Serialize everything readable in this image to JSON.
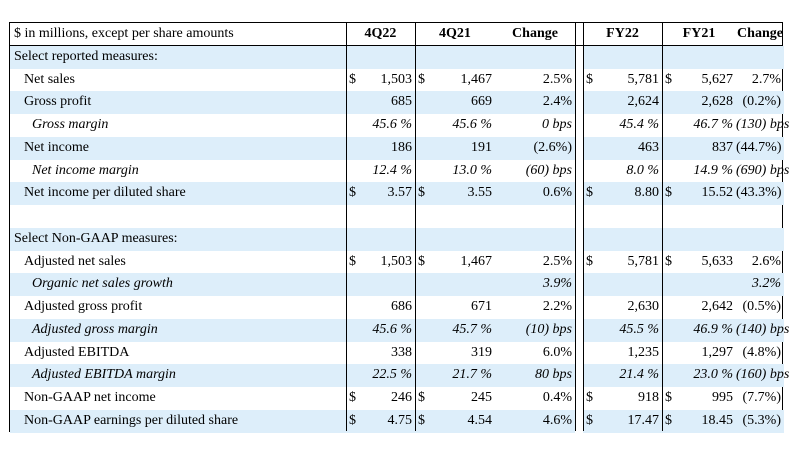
{
  "header": {
    "label": "$ in millions, except per share amounts",
    "columns": [
      "4Q22",
      "4Q21",
      "Change",
      "FY22",
      "FY21",
      "Change"
    ]
  },
  "rows": [
    {
      "label": "Select reported measures:",
      "indent": 0,
      "style": "section",
      "values": [
        "",
        "",
        "",
        "",
        "",
        ""
      ],
      "cur": [
        false,
        false,
        false,
        false
      ]
    },
    {
      "label": "Net sales",
      "indent": 1,
      "style": "normal",
      "values": [
        "1,503",
        "1,467",
        "2.5%",
        "5,781",
        "5,627",
        "2.7%"
      ],
      "cur": [
        true,
        true,
        true,
        true
      ]
    },
    {
      "label": "Gross profit",
      "indent": 1,
      "style": "normal",
      "values": [
        "685",
        "669",
        "2.4%",
        "2,624",
        "2,628",
        "(0.2%)"
      ],
      "cur": [
        false,
        false,
        false,
        false
      ]
    },
    {
      "label": "Gross margin",
      "indent": 2,
      "style": "italic",
      "values": [
        "45.6 %",
        "45.6 %",
        "0 bps",
        "45.4 %",
        "46.7 %",
        "(130) bps"
      ],
      "cur": [
        false,
        false,
        false,
        false
      ]
    },
    {
      "label": "Net income",
      "indent": 1,
      "style": "normal",
      "values": [
        "186",
        "191",
        "(2.6%)",
        "463",
        "837",
        "(44.7%)"
      ],
      "cur": [
        false,
        false,
        false,
        false
      ]
    },
    {
      "label": "Net income margin",
      "indent": 2,
      "style": "italic",
      "values": [
        "12.4 %",
        "13.0 %",
        "(60) bps",
        "8.0 %",
        "14.9 %",
        "(690) bps"
      ],
      "cur": [
        false,
        false,
        false,
        false
      ]
    },
    {
      "label": "Net income per diluted share",
      "indent": 1,
      "style": "normal",
      "values": [
        "3.57",
        "3.55",
        "0.6%",
        "8.80",
        "15.52",
        "(43.3%)"
      ],
      "cur": [
        true,
        true,
        true,
        true
      ]
    },
    {
      "label": "",
      "indent": 0,
      "style": "blank",
      "values": [
        "",
        "",
        "",
        "",
        "",
        ""
      ],
      "cur": [
        false,
        false,
        false,
        false
      ]
    },
    {
      "label": "Select Non-GAAP measures:",
      "indent": 0,
      "style": "section",
      "values": [
        "",
        "",
        "",
        "",
        "",
        ""
      ],
      "cur": [
        false,
        false,
        false,
        false
      ]
    },
    {
      "label": "Adjusted net sales",
      "indent": 1,
      "style": "normal",
      "values": [
        "1,503",
        "1,467",
        "2.5%",
        "5,781",
        "5,633",
        "2.6%"
      ],
      "cur": [
        true,
        true,
        true,
        true
      ]
    },
    {
      "label": "Organic net sales growth",
      "indent": 2,
      "style": "italic",
      "values": [
        "",
        "",
        "3.9%",
        "",
        "",
        "3.2%"
      ],
      "cur": [
        false,
        false,
        false,
        false
      ]
    },
    {
      "label": "Adjusted gross profit",
      "indent": 1,
      "style": "normal",
      "values": [
        "686",
        "671",
        "2.2%",
        "2,630",
        "2,642",
        "(0.5%)"
      ],
      "cur": [
        false,
        false,
        false,
        false
      ]
    },
    {
      "label": "Adjusted gross margin",
      "indent": 2,
      "style": "italic",
      "values": [
        "45.6 %",
        "45.7 %",
        "(10) bps",
        "45.5 %",
        "46.9 %",
        "(140) bps"
      ],
      "cur": [
        false,
        false,
        false,
        false
      ]
    },
    {
      "label": "Adjusted EBITDA",
      "indent": 1,
      "style": "normal",
      "values": [
        "338",
        "319",
        "6.0%",
        "1,235",
        "1,297",
        "(4.8%)"
      ],
      "cur": [
        false,
        false,
        false,
        false
      ]
    },
    {
      "label": "Adjusted EBITDA margin",
      "indent": 2,
      "style": "italic",
      "values": [
        "22.5 %",
        "21.7 %",
        "80 bps",
        "21.4 %",
        "23.0 %",
        "(160) bps"
      ],
      "cur": [
        false,
        false,
        false,
        false
      ]
    },
    {
      "label": "Non-GAAP net income",
      "indent": 1,
      "style": "normal",
      "values": [
        "246",
        "245",
        "0.4%",
        "918",
        "995",
        "(7.7%)"
      ],
      "cur": [
        true,
        true,
        true,
        true
      ]
    },
    {
      "label": "Non-GAAP earnings per diluted share",
      "indent": 1,
      "style": "normal",
      "values": [
        "4.75",
        "4.54",
        "4.6%",
        "17.47",
        "18.45",
        "(5.3%)"
      ],
      "cur": [
        true,
        true,
        true,
        true
      ]
    }
  ],
  "currency_symbol": "$",
  "colors": {
    "row_shade": "#ddeefa",
    "border": "#000000",
    "background": "#ffffff"
  }
}
